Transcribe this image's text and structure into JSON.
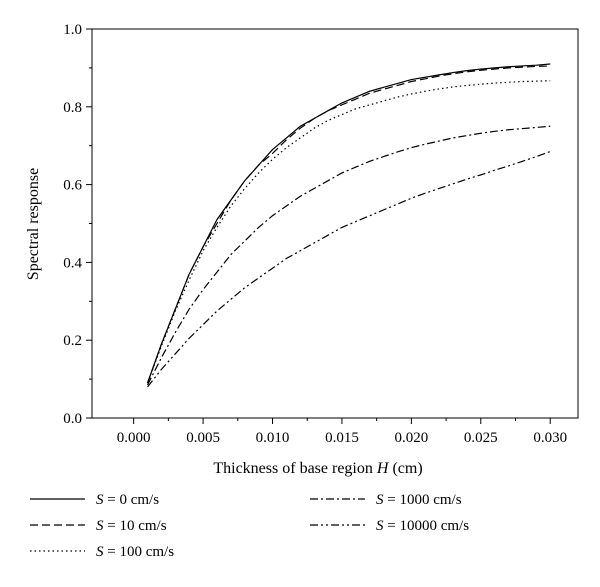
{
  "chart_data": {
    "type": "line",
    "title": "",
    "xlabel": "Thickness of base region H (cm)",
    "xlabel_parts": [
      "Thickness of base region ",
      "H",
      " (cm)"
    ],
    "ylabel": "Spectral response",
    "xlim": [
      -0.003,
      0.032
    ],
    "ylim": [
      0.0,
      1.0
    ],
    "xticks": [
      0.0,
      0.005,
      0.01,
      0.015,
      0.02,
      0.025,
      0.03
    ],
    "xtick_labels": [
      "0.000",
      "0.005",
      "0.010",
      "0.015",
      "0.020",
      "0.025",
      "0.030"
    ],
    "yticks": [
      0.0,
      0.2,
      0.4,
      0.6,
      0.8,
      1.0
    ],
    "ytick_labels": [
      "0.0",
      "0.2",
      "0.4",
      "0.6",
      "0.8",
      "1.0"
    ],
    "grid": false,
    "legend_position": "below",
    "x": [
      0.001,
      0.002,
      0.003,
      0.004,
      0.005,
      0.006,
      0.007,
      0.008,
      0.009,
      0.01,
      0.011,
      0.012,
      0.013,
      0.014,
      0.015,
      0.016,
      0.017,
      0.018,
      0.019,
      0.02,
      0.021,
      0.022,
      0.023,
      0.024,
      0.025,
      0.026,
      0.027,
      0.028,
      0.029,
      0.03
    ],
    "series": [
      {
        "name": "S = 0 cm/s",
        "var": "S",
        "rest": " = 0 cm/s",
        "dash": "solid",
        "values": [
          0.09,
          0.19,
          0.28,
          0.37,
          0.44,
          0.51,
          0.56,
          0.61,
          0.65,
          0.69,
          0.72,
          0.75,
          0.77,
          0.79,
          0.81,
          0.825,
          0.84,
          0.85,
          0.86,
          0.87,
          0.876,
          0.882,
          0.888,
          0.893,
          0.897,
          0.9,
          0.903,
          0.905,
          0.907,
          0.91
        ]
      },
      {
        "name": "S = 10 cm/s",
        "var": "S",
        "rest": " = 10 cm/s",
        "dash": "dash",
        "values": [
          0.09,
          0.19,
          0.28,
          0.37,
          0.44,
          0.5,
          0.56,
          0.61,
          0.65,
          0.68,
          0.715,
          0.745,
          0.77,
          0.79,
          0.805,
          0.82,
          0.835,
          0.845,
          0.855,
          0.865,
          0.872,
          0.879,
          0.885,
          0.89,
          0.894,
          0.897,
          0.9,
          0.902,
          0.904,
          0.905
        ]
      },
      {
        "name": "S = 100 cm/s",
        "var": "S",
        "rest": " = 100 cm/s",
        "dash": "dot",
        "values": [
          0.09,
          0.185,
          0.275,
          0.355,
          0.43,
          0.49,
          0.545,
          0.59,
          0.63,
          0.665,
          0.695,
          0.72,
          0.745,
          0.765,
          0.78,
          0.795,
          0.805,
          0.815,
          0.825,
          0.833,
          0.84,
          0.846,
          0.851,
          0.855,
          0.858,
          0.861,
          0.863,
          0.865,
          0.866,
          0.867
        ]
      },
      {
        "name": "S = 1000 cm/s",
        "var": "S",
        "rest": " = 1000 cm/s",
        "dash": "dashdot",
        "values": [
          0.085,
          0.155,
          0.22,
          0.28,
          0.33,
          0.375,
          0.42,
          0.455,
          0.49,
          0.52,
          0.545,
          0.57,
          0.59,
          0.61,
          0.63,
          0.645,
          0.66,
          0.672,
          0.684,
          0.695,
          0.704,
          0.712,
          0.72,
          0.726,
          0.732,
          0.737,
          0.741,
          0.744,
          0.747,
          0.75
        ]
      },
      {
        "name": "S = 10000 cm/s",
        "var": "S",
        "rest": " = 10000 cm/s",
        "dash": "dashdotdot",
        "values": [
          0.08,
          0.125,
          0.165,
          0.205,
          0.24,
          0.275,
          0.305,
          0.335,
          0.36,
          0.385,
          0.41,
          0.43,
          0.45,
          0.47,
          0.49,
          0.505,
          0.52,
          0.535,
          0.55,
          0.565,
          0.578,
          0.59,
          0.602,
          0.614,
          0.625,
          0.637,
          0.648,
          0.66,
          0.672,
          0.685
        ]
      }
    ]
  }
}
